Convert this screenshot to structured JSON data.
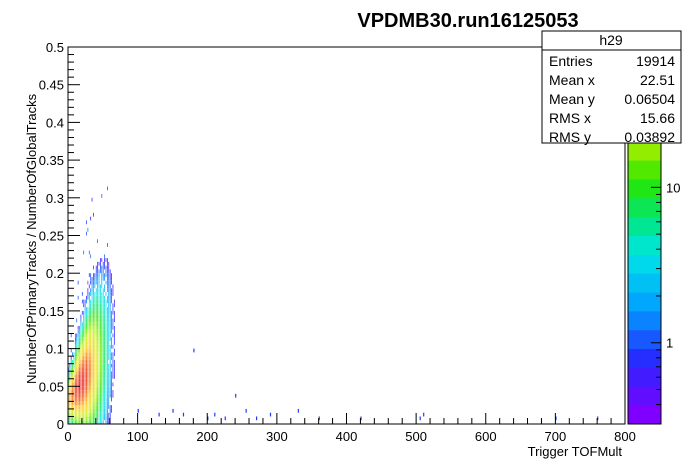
{
  "chart_data": {
    "type": "heatmap",
    "title": "VPDMB30.run16125053",
    "xlabel": "Trigger TOFMult",
    "ylabel": "NumberOfPrimaryTracks / NumberOfGlobalTracks",
    "xlim": [
      0,
      800
    ],
    "ylim": [
      0,
      0.5
    ],
    "x_ticks": [
      "0",
      "100",
      "200",
      "300",
      "400",
      "500",
      "600",
      "700",
      "800"
    ],
    "y_ticks": [
      "0",
      "0.05",
      "0.1",
      "0.15",
      "0.2",
      "0.25",
      "0.3",
      "0.35",
      "0.4",
      "0.45",
      "0.5"
    ],
    "z_scale": "log",
    "z_ticks": [
      "1",
      "10"
    ],
    "z_tick_values": [
      1,
      10
    ],
    "z_range": [
      0.3,
      80
    ],
    "grid": false,
    "distribution": {
      "peak_x": 12,
      "peak_y": 0.05,
      "peak_count": 80,
      "mean_x": 22.51,
      "mean_y": 0.06504
    },
    "sparse_points": [
      [
        100,
        0.015
      ],
      [
        130,
        0.01
      ],
      [
        150,
        0.015
      ],
      [
        165,
        0.01
      ],
      [
        180,
        0.095
      ],
      [
        200,
        0.005
      ],
      [
        210,
        0.01
      ],
      [
        225,
        0.005
      ],
      [
        240,
        0.035
      ],
      [
        255,
        0.015
      ],
      [
        270,
        0.005
      ],
      [
        290,
        0.01
      ],
      [
        330,
        0.015
      ],
      [
        360,
        0.005
      ],
      [
        420,
        0.005
      ],
      [
        505,
        0.005
      ],
      [
        510,
        0.01
      ],
      [
        700,
        0.005
      ],
      [
        760,
        0.005
      ]
    ],
    "stats": {
      "name": "h29",
      "rows": [
        {
          "label": "Entries",
          "value": "19914"
        },
        {
          "label": "Mean x",
          "value": "22.51"
        },
        {
          "label": "Mean y",
          "value": "0.06504"
        },
        {
          "label": "RMS x",
          "value": "15.66"
        },
        {
          "label": "RMS y",
          "value": "0.03892"
        }
      ]
    }
  }
}
